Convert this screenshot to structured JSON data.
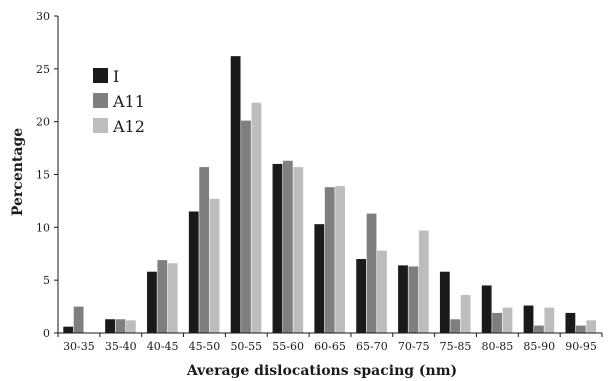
{
  "chart_data": {
    "type": "bar",
    "title": "",
    "xlabel": "Average dislocations spacing (nm)",
    "ylabel": "Percentage",
    "ylim": [
      0,
      30
    ],
    "yticks": [
      0,
      5,
      10,
      15,
      20,
      25,
      30
    ],
    "grid": false,
    "legend_position": "top-left",
    "categories": [
      "30-35",
      "35-40",
      "40-45",
      "45-50",
      "50-55",
      "55-60",
      "60-65",
      "65-70",
      "70-75",
      "75-85",
      "80-85",
      "85-90",
      "90-95"
    ],
    "series": [
      {
        "name": "I",
        "color": "#1a1a1a",
        "values": [
          0.6,
          1.3,
          5.8,
          11.5,
          26.2,
          16.0,
          10.3,
          7.0,
          6.4,
          5.8,
          4.5,
          2.6,
          1.9
        ]
      },
      {
        "name": "A11",
        "color": "#7f7f7f",
        "values": [
          2.5,
          1.3,
          6.9,
          15.7,
          20.1,
          16.3,
          13.8,
          11.3,
          6.3,
          1.3,
          1.9,
          0.7,
          0.7
        ]
      },
      {
        "name": "A12",
        "color": "#bdbdbd",
        "values": [
          0.0,
          1.2,
          6.6,
          12.7,
          21.8,
          15.7,
          13.9,
          7.8,
          9.7,
          3.6,
          2.4,
          2.4,
          1.2
        ]
      }
    ]
  }
}
